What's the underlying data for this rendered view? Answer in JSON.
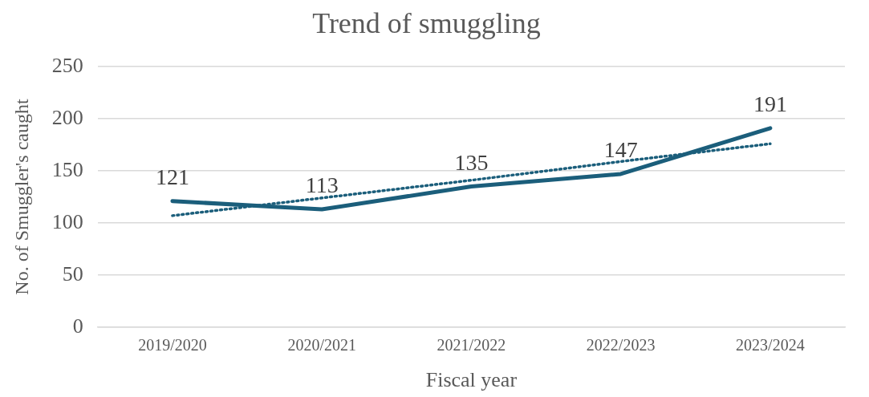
{
  "chart_data": {
    "type": "line",
    "title": "Trend of smuggling",
    "xlabel": "Fiscal year",
    "ylabel": "No. of Smuggler's caught",
    "categories": [
      "2019/2020",
      "2020/2021",
      "2021/2022",
      "2022/2023",
      "2023/2024"
    ],
    "series": [
      {
        "color": "#1b5e7b",
        "values": [
          121,
          113,
          135,
          147,
          191
        ],
        "value_labels": [
          "121",
          "113",
          "135",
          "147",
          "191"
        ],
        "line_style": "solid"
      },
      {
        "type": "line",
        "color": "#1b5e7b",
        "values": [
          107,
          124,
          141,
          159,
          176
        ],
        "line_style": "dotted"
      }
    ],
    "ylim": [
      0,
      250
    ],
    "yticks": [
      0,
      50,
      100,
      150,
      200,
      250
    ],
    "grid": "y",
    "legend": false,
    "marker": "none"
  }
}
